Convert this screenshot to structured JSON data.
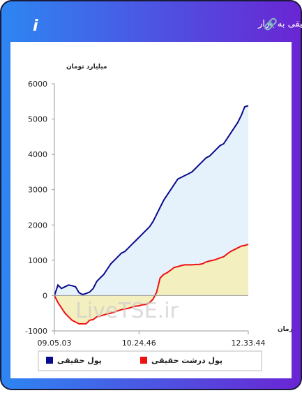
{
  "chart_data": {
    "type": "area",
    "title": "برآیند ورود و خروج پول حقیقی و پول درشت حقیقی به بازار",
    "y_label": "میلیارد تومان",
    "x_label": "زمان",
    "watermark": "LiveTSE.ir",
    "ylim": [
      -1000,
      6000
    ],
    "yticks": [
      -1000,
      0,
      1000,
      2000,
      3000,
      4000,
      5000,
      6000
    ],
    "xlim": [
      0,
      55
    ],
    "xticks": [
      {
        "value": 0,
        "label": "09.05.03"
      },
      {
        "value": 24,
        "label": "10.24.46"
      },
      {
        "value": 55,
        "label": "12.33.44"
      }
    ],
    "series": [
      {
        "name": "پول حقیقی",
        "color": "#0a0a8c",
        "fill": "#e6f2fb",
        "values": [
          0,
          300,
          200,
          250,
          300,
          280,
          250,
          80,
          30,
          60,
          100,
          200,
          400,
          500,
          600,
          750,
          900,
          1000,
          1100,
          1200,
          1250,
          1350,
          1450,
          1550,
          1650,
          1750,
          1850,
          1950,
          2100,
          2300,
          2500,
          2700,
          2850,
          3000,
          3150,
          3300,
          3350,
          3400,
          3450,
          3500,
          3600,
          3700,
          3800,
          3900,
          3950,
          4050,
          4150,
          4250,
          4300,
          4450,
          4600,
          4750,
          4900,
          5100,
          5350,
          5380
        ]
      },
      {
        "name": "پول درشت حقیقی",
        "color": "#ee1111",
        "fill": "#f3efbf",
        "values": [
          0,
          -200,
          -350,
          -500,
          -600,
          -700,
          -750,
          -800,
          -800,
          -800,
          -700,
          -680,
          -600,
          -580,
          -550,
          -520,
          -500,
          -470,
          -430,
          -400,
          -380,
          -360,
          -330,
          -300,
          -290,
          -260,
          -250,
          -200,
          -100,
          100,
          500,
          600,
          650,
          720,
          800,
          820,
          850,
          870,
          870,
          870,
          880,
          880,
          900,
          950,
          980,
          1000,
          1030,
          1070,
          1100,
          1180,
          1250,
          1300,
          1350,
          1400,
          1420,
          1450
        ]
      }
    ]
  }
}
